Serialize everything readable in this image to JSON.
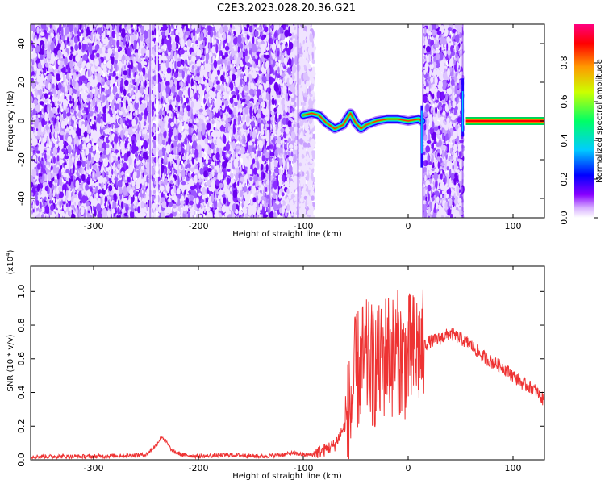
{
  "title": "C2E3.2023.028.20.36.G21",
  "chart_data": [
    {
      "type": "heatmap",
      "subtype": "spectrogram",
      "xlabel": "Height of straight line (km)",
      "ylabel": "Frequency (Hz)",
      "xlim": [
        -360,
        130
      ],
      "ylim": [
        -50,
        50
      ],
      "xticks": [
        -300,
        -200,
        -100,
        0,
        100
      ],
      "yticks": [
        -40,
        -20,
        0,
        20,
        40
      ],
      "xtick_labels": [
        "-300",
        "-200",
        "-100",
        "0",
        "100"
      ],
      "ytick_labels": [
        "-40",
        "-20",
        "0",
        "20",
        "40"
      ],
      "colorbar": {
        "label": "Normalized spectral amplitude",
        "range": [
          0.0,
          1.0
        ],
        "ticks": [
          0.0,
          0.2,
          0.4,
          0.6,
          0.8
        ],
        "tick_labels": [
          "0.0",
          "0.2",
          "0.4",
          "0.6",
          "0.8"
        ],
        "colormap": [
          "#ffffff",
          "#cc99ff",
          "#8800ff",
          "#0000ff",
          "#00ccff",
          "#00ff66",
          "#ccff00",
          "#ff9900",
          "#ff0000",
          "#ff0080"
        ]
      },
      "noise_regions_km": [
        [
          -360,
          -90
        ],
        [
          15,
          52
        ]
      ],
      "signal_track": [
        {
          "x": -100,
          "y": 3
        },
        {
          "x": -92,
          "y": 4
        },
        {
          "x": -85,
          "y": 3
        },
        {
          "x": -78,
          "y": -1
        },
        {
          "x": -70,
          "y": -4
        },
        {
          "x": -62,
          "y": -2
        },
        {
          "x": -55,
          "y": 4
        },
        {
          "x": -50,
          "y": -1
        },
        {
          "x": -45,
          "y": -4
        },
        {
          "x": -40,
          "y": -2
        },
        {
          "x": -30,
          "y": 0
        },
        {
          "x": -20,
          "y": 1
        },
        {
          "x": -10,
          "y": 1
        },
        {
          "x": 0,
          "y": 0
        },
        {
          "x": 10,
          "y": 1
        },
        {
          "x": 13,
          "y": 0
        }
      ],
      "steady_tone": {
        "x_start": 55,
        "x_end": 130,
        "y": 0
      }
    },
    {
      "type": "line",
      "xlabel": "Height of straight line (km)",
      "ylabel": "SNR (10 * v/v)",
      "yscale_label": "(x10^4)",
      "xlim": [
        -360,
        130
      ],
      "ylim": [
        0.0,
        1.15
      ],
      "xticks": [
        -300,
        -200,
        -100,
        0,
        100
      ],
      "yticks": [
        0.0,
        0.2,
        0.4,
        0.6,
        0.8,
        1.0
      ],
      "xtick_labels": [
        "-300",
        "-200",
        "-100",
        "0",
        "100"
      ],
      "ytick_labels": [
        "0.0",
        "0.2",
        "0.4",
        "0.6",
        "0.8",
        "1.0"
      ],
      "color": "#ee3333",
      "series": [
        {
          "x": [
            -360,
            -300,
            -250,
            -240,
            -235,
            -230,
            -225,
            -215,
            -200,
            -170,
            -140,
            -120,
            -110,
            -100,
            -90,
            -80,
            -70,
            -60,
            -55,
            -50,
            -45,
            -40,
            -35,
            -30,
            -25,
            -20,
            -15,
            -10,
            -5,
            0,
            5,
            10,
            15,
            20,
            30,
            40,
            50,
            60,
            70,
            80,
            90,
            100,
            110,
            120,
            130
          ],
          "y": [
            0.02,
            0.02,
            0.03,
            0.09,
            0.14,
            0.1,
            0.05,
            0.03,
            0.02,
            0.03,
            0.02,
            0.03,
            0.04,
            0.03,
            0.03,
            0.05,
            0.08,
            0.2,
            0.33,
            0.55,
            0.6,
            0.62,
            0.6,
            0.58,
            0.6,
            0.7,
            0.65,
            0.68,
            0.62,
            0.66,
            0.67,
            0.7,
            0.68,
            0.7,
            0.72,
            0.75,
            0.72,
            0.68,
            0.62,
            0.58,
            0.55,
            0.5,
            0.45,
            0.42,
            0.35
          ]
        }
      ]
    }
  ]
}
